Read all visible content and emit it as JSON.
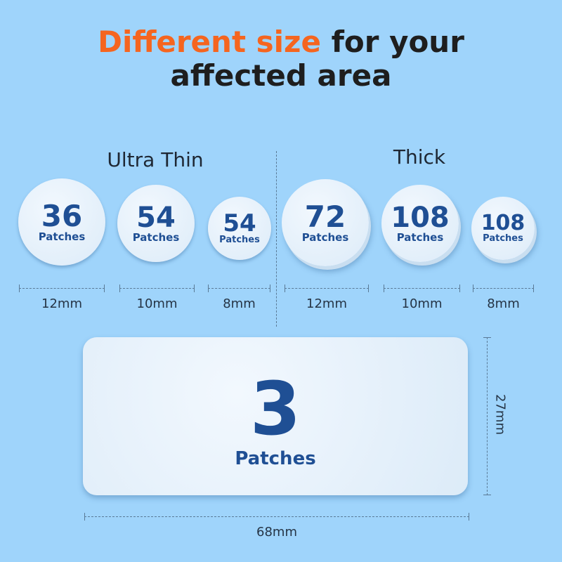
{
  "title": {
    "highlight": "Different size",
    "rest1": " for your",
    "line2": "affected area"
  },
  "sections": {
    "ultra_thin": "Ultra Thin",
    "thick": "Thick"
  },
  "patches": [
    {
      "count": "36",
      "label": "Patches",
      "size": "12mm",
      "type": "Ultra Thin"
    },
    {
      "count": "54",
      "label": "Patches",
      "size": "10mm",
      "type": "Ultra Thin"
    },
    {
      "count": "54",
      "label": "Patches",
      "size": "8mm",
      "type": "Ultra Thin"
    },
    {
      "count": "72",
      "label": "Patches",
      "size": "12mm",
      "type": "Thick"
    },
    {
      "count": "108",
      "label": "Patches",
      "size": "10mm",
      "type": "Thick"
    },
    {
      "count": "108",
      "label": "Patches",
      "size": "8mm",
      "type": "Thick"
    }
  ],
  "rect_patch": {
    "count": "3",
    "label": "Patches",
    "width": "68mm",
    "height": "27mm"
  },
  "colors": {
    "background": "#9fd4fb",
    "accent": "#f5651f",
    "patch_text": "#1f4f94"
  }
}
